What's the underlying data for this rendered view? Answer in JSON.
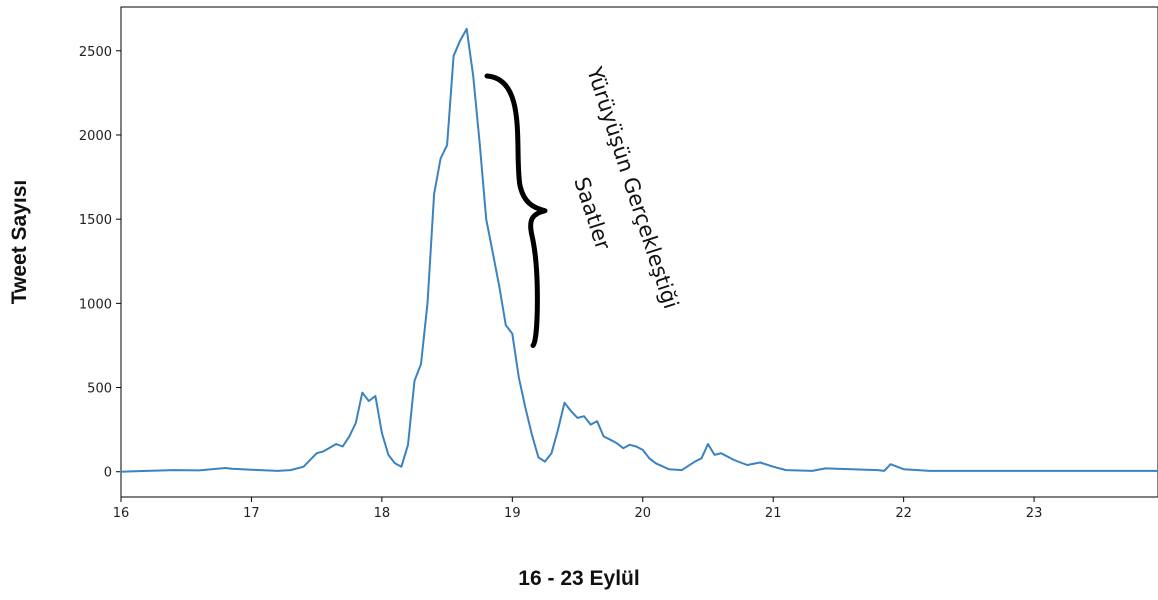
{
  "chart_data": {
    "type": "line",
    "title": "",
    "xlabel": "16 - 23 Eylül",
    "ylabel": "Tweet Sayısı",
    "xlim": [
      16,
      23.95
    ],
    "ylim": [
      -150,
      2760
    ],
    "xticks": [
      16,
      17,
      18,
      19,
      20,
      21,
      22,
      23
    ],
    "yticks": [
      0,
      500,
      1000,
      1500,
      2000,
      2500
    ],
    "grid": false,
    "line_color": "#3b82c0",
    "annotation": {
      "lines": [
        "Yürüyüşün Gerçekleştiği",
        "Saatler"
      ],
      "bracket": "}",
      "y_range": [
        750,
        2350
      ]
    },
    "series": [
      {
        "x": [
          16.0,
          16.2,
          16.4,
          16.6,
          16.8,
          16.85,
          17.0,
          17.2,
          17.3,
          17.4,
          17.5,
          17.55,
          17.65,
          17.7,
          17.75,
          17.8,
          17.85,
          17.9,
          17.95,
          18.0,
          18.05,
          18.1,
          18.15,
          18.2,
          18.25,
          18.3,
          18.35,
          18.4,
          18.45,
          18.5,
          18.55,
          18.6,
          18.65,
          18.7,
          18.75,
          18.8,
          18.85,
          18.9,
          18.95,
          19.0,
          19.05,
          19.1,
          19.15,
          19.2,
          19.25,
          19.3,
          19.35,
          19.4,
          19.45,
          19.5,
          19.55,
          19.6,
          19.65,
          19.7,
          19.75,
          19.8,
          19.85,
          19.9,
          19.95,
          20.0,
          20.05,
          20.1,
          20.2,
          20.3,
          20.4,
          20.45,
          20.5,
          20.55,
          20.6,
          20.7,
          20.8,
          20.9,
          21.0,
          21.1,
          21.3,
          21.4,
          21.6,
          21.8,
          21.85,
          21.9,
          22.0,
          22.2,
          22.5,
          23.0,
          23.5,
          23.95
        ],
        "values": [
          0,
          5,
          10,
          8,
          22,
          18,
          12,
          5,
          10,
          30,
          110,
          120,
          165,
          150,
          210,
          290,
          470,
          420,
          450,
          230,
          100,
          50,
          30,
          160,
          540,
          640,
          1000,
          1650,
          1860,
          1940,
          2470,
          2560,
          2630,
          2350,
          1950,
          1500,
          1300,
          1100,
          870,
          820,
          560,
          380,
          220,
          85,
          60,
          110,
          250,
          410,
          360,
          320,
          330,
          280,
          300,
          210,
          190,
          170,
          140,
          160,
          150,
          130,
          80,
          50,
          15,
          10,
          60,
          80,
          165,
          100,
          110,
          70,
          40,
          55,
          30,
          10,
          5,
          20,
          15,
          10,
          5,
          45,
          15,
          5,
          5,
          5,
          5,
          5
        ]
      }
    ]
  }
}
